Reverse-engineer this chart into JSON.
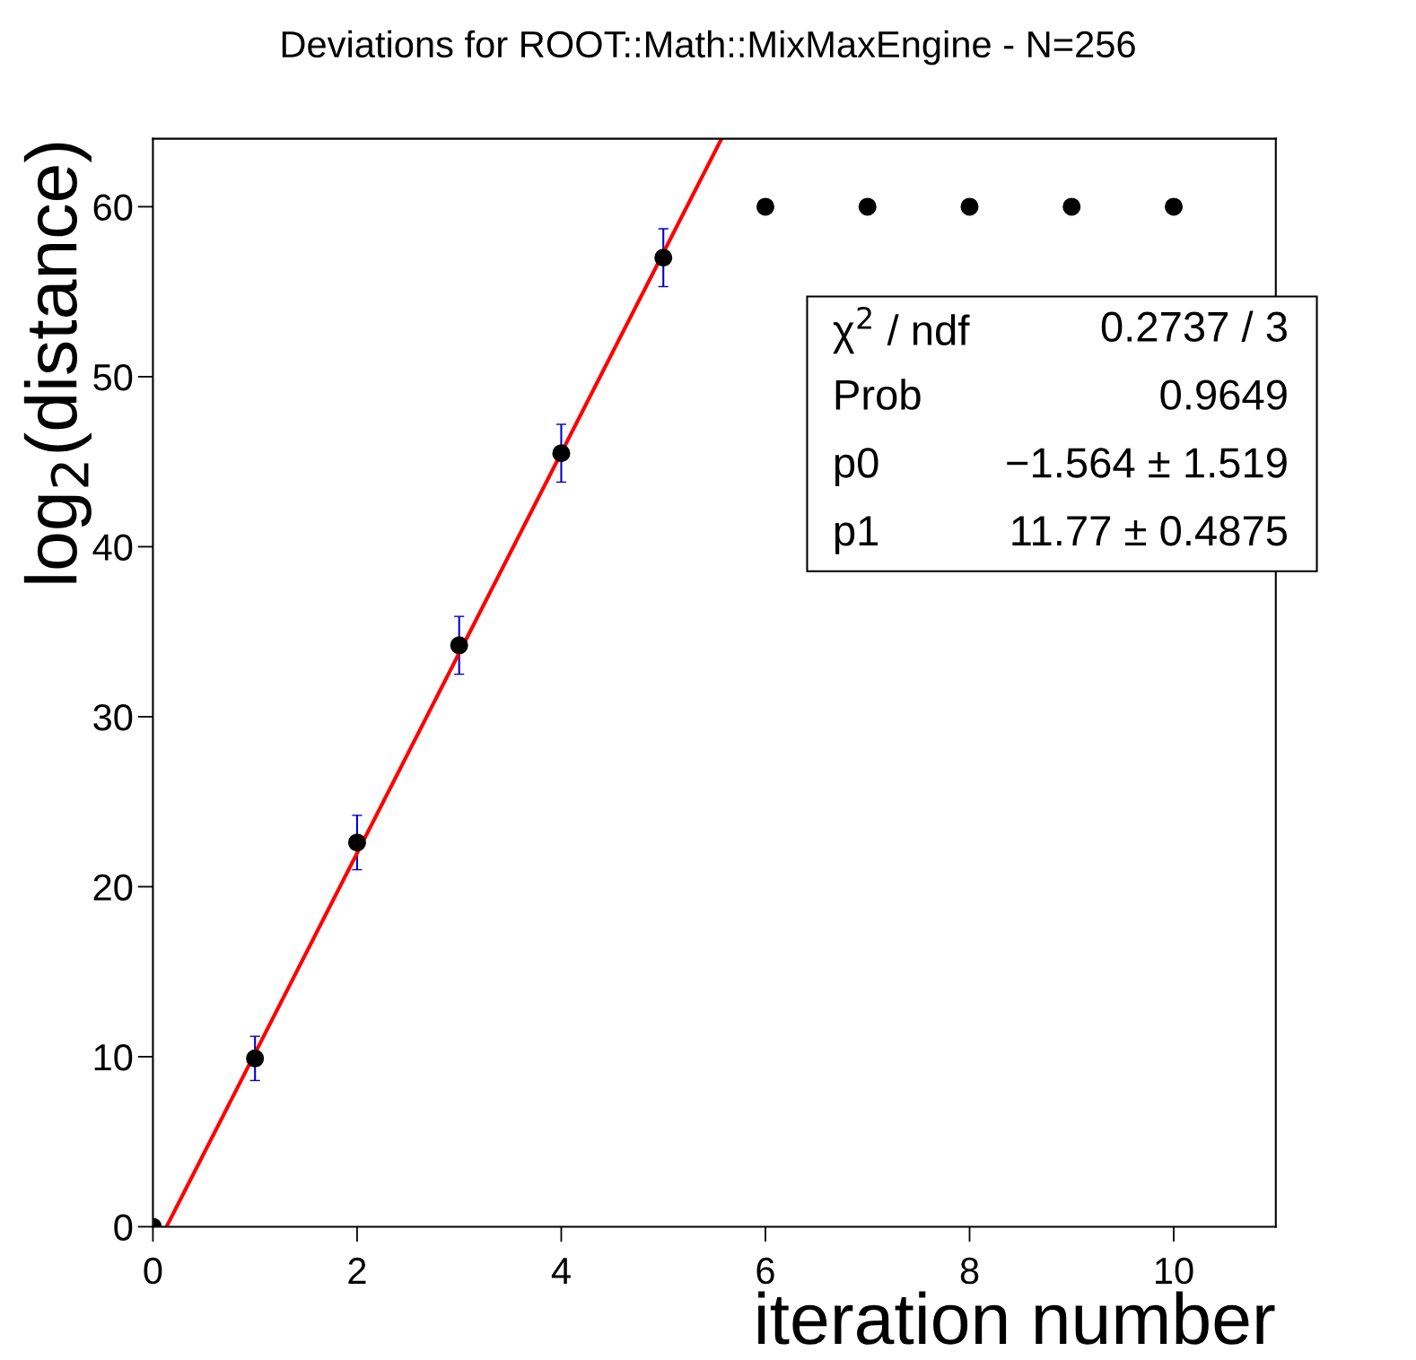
{
  "chart_data": {
    "type": "scatter",
    "title": "Deviations for ROOT::Math::MixMaxEngine - N=256",
    "xlabel": "iteration number",
    "ylabel": "log$_{2}$(distance)",
    "series": [
      {
        "color": "#000000",
        "marker": "circle",
        "x": [
          0,
          1,
          2,
          3,
          4,
          5,
          6,
          7,
          8,
          9,
          10
        ],
        "values": [
          0,
          9.9,
          22.6,
          34.2,
          45.5,
          57.0,
          60,
          60,
          60,
          60,
          60
        ],
        "errors": [
          null,
          1.3,
          1.6,
          1.7,
          1.7,
          1.7,
          null,
          null,
          null,
          null,
          null
        ]
      },
      {
        "type": "line",
        "color": "#ff0000",
        "x": [
          0.133,
          5.57
        ],
        "values": [
          0,
          64
        ]
      }
    ],
    "xlim": [
      0,
      11
    ],
    "ylim": [
      0,
      64
    ],
    "xticks": [
      0,
      2,
      4,
      6,
      8,
      10
    ],
    "yticks": [
      0,
      10,
      20,
      30,
      40,
      50,
      60
    ],
    "grid": false,
    "legend": false,
    "annotations": [
      [
        "χ$^{2}$ / ndf",
        "0.2737 / 3"
      ],
      [
        "Prob",
        "0.9649"
      ],
      [
        "p0",
        "−1.564 ± 1.519"
      ],
      [
        "p1",
        "11.77 ± 0.4875"
      ]
    ]
  }
}
